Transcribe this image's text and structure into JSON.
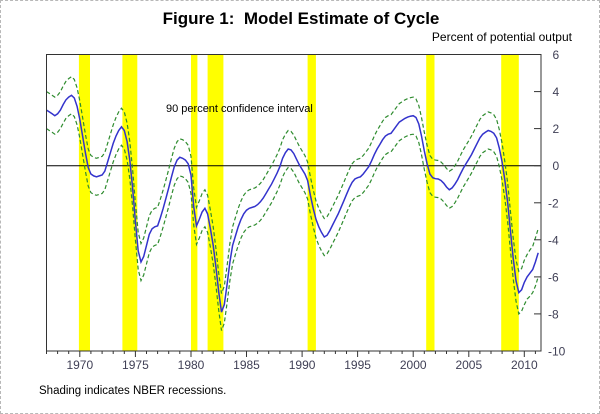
{
  "figure": {
    "title": "Figure 1:  Model Estimate of Cycle",
    "y_axis_title": "Percent of potential output",
    "annotation": "90 percent confidence interval",
    "footnote": "Shading indicates NBER recessions."
  },
  "colors": {
    "estimate_line": "#3333cc",
    "ci_line": "#2f8c2f",
    "recession_shading": "#ffff00",
    "axis": "#333333",
    "zero_line": "#000000",
    "tick_label": "#3f3f55"
  },
  "chart_data": {
    "type": "line",
    "title": "Figure 1:  Model Estimate of Cycle",
    "xlabel": "",
    "ylabel": "Percent of potential output",
    "xlim": [
      1967,
      2011.5
    ],
    "ylim": [
      -10,
      6
    ],
    "grid": false,
    "zero_line": true,
    "legend_position": "none",
    "x_start": 1967.0,
    "x_step": 0.25,
    "x_tick_labels": [
      1970,
      1975,
      1980,
      1985,
      1990,
      1995,
      2000,
      2005,
      2010
    ],
    "x_minor_tick_interval": 1,
    "y_tick_labels": [
      6,
      4,
      2,
      0,
      -2,
      -4,
      -6,
      -8,
      -10
    ],
    "series": [
      {
        "name": "Model estimate of cycle (percent of potential output)",
        "values": [
          3.0,
          2.9,
          2.8,
          2.7,
          2.8,
          3.0,
          3.3,
          3.55,
          3.7,
          3.8,
          3.65,
          3.2,
          2.5,
          1.6,
          0.7,
          -0.1,
          -0.45,
          -0.55,
          -0.6,
          -0.55,
          -0.5,
          -0.3,
          0.2,
          0.7,
          1.2,
          1.6,
          1.9,
          2.1,
          1.9,
          1.3,
          0.3,
          -1.2,
          -3.0,
          -4.6,
          -5.2,
          -4.9,
          -4.3,
          -3.7,
          -3.4,
          -3.3,
          -3.25,
          -2.8,
          -2.3,
          -1.75,
          -1.2,
          -0.6,
          -0.05,
          0.3,
          0.45,
          0.4,
          0.3,
          0.1,
          -0.5,
          -2.2,
          -3.25,
          -2.9,
          -2.5,
          -2.3,
          -2.6,
          -3.4,
          -4.3,
          -5.5,
          -6.8,
          -7.9,
          -7.5,
          -6.4,
          -5.2,
          -4.3,
          -3.8,
          -3.3,
          -2.9,
          -2.6,
          -2.4,
          -2.3,
          -2.25,
          -2.2,
          -2.1,
          -1.95,
          -1.75,
          -1.5,
          -1.25,
          -1.0,
          -0.7,
          -0.4,
          -0.05,
          0.4,
          0.7,
          0.9,
          0.85,
          0.65,
          0.35,
          0.05,
          -0.2,
          -0.45,
          -0.8,
          -1.6,
          -2.3,
          -2.9,
          -3.3,
          -3.6,
          -3.85,
          -3.75,
          -3.5,
          -3.2,
          -2.9,
          -2.6,
          -2.25,
          -1.9,
          -1.55,
          -1.2,
          -0.9,
          -0.72,
          -0.65,
          -0.6,
          -0.45,
          -0.25,
          -0.05,
          0.25,
          0.6,
          0.9,
          1.15,
          1.4,
          1.6,
          1.7,
          1.75,
          1.95,
          2.15,
          2.35,
          2.45,
          2.55,
          2.62,
          2.67,
          2.7,
          2.6,
          2.25,
          1.6,
          0.8,
          0.1,
          -0.45,
          -0.65,
          -0.7,
          -0.72,
          -0.8,
          -0.95,
          -1.15,
          -1.3,
          -1.2,
          -1.0,
          -0.75,
          -0.45,
          -0.15,
          0.1,
          0.35,
          0.6,
          0.9,
          1.2,
          1.5,
          1.7,
          1.8,
          1.9,
          1.85,
          1.75,
          1.5,
          0.95,
          0.2,
          -0.8,
          -2.0,
          -3.5,
          -5.0,
          -6.2,
          -6.85,
          -6.7,
          -6.3,
          -6.0,
          -5.8,
          -5.6,
          -5.2,
          -4.7
        ]
      }
    ],
    "confidence_interval": {
      "level_label": "90 percent confidence interval",
      "halfwidth_default": 1.0,
      "tail_start_index": 164,
      "halfwidth_tail": [
        1.0,
        1.0,
        1.05,
        1.05,
        1.1,
        1.1,
        1.15,
        1.15,
        1.2,
        1.2,
        1.25,
        1.25,
        1.3,
        1.3
      ]
    },
    "recessions": [
      [
        1969.92,
        1970.92
      ],
      [
        1973.83,
        1975.17
      ],
      [
        1980.0,
        1980.58
      ],
      [
        1981.5,
        1982.92
      ],
      [
        1990.5,
        1991.25
      ],
      [
        2001.17,
        2001.92
      ],
      [
        2007.92,
        2009.5
      ]
    ]
  }
}
